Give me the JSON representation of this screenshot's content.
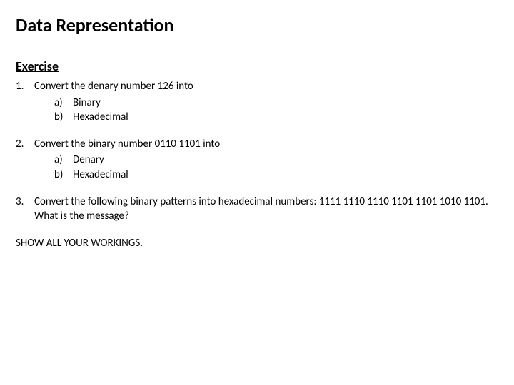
{
  "colors": {
    "background": "#ffffff",
    "text": "#000000"
  },
  "typography": {
    "family": "Calibri",
    "title_size_pt": 20,
    "subtitle_size_pt": 14,
    "body_size_pt": 11
  },
  "title": "Data Representation",
  "subtitle": "Exercise",
  "items": [
    {
      "num": "1.",
      "prompt": "Convert the denary number 126 into",
      "subs": [
        {
          "num": "a)",
          "text": "Binary"
        },
        {
          "num": "b)",
          "text": "Hexadecimal"
        }
      ]
    },
    {
      "num": "2.",
      "prompt": "Convert the binary number 0110 1101 into",
      "subs": [
        {
          "num": "a)",
          "text": "Denary"
        },
        {
          "num": "b)",
          "text": "Hexadecimal"
        }
      ]
    },
    {
      "num": "3.",
      "prompt": "Convert the following binary patterns into hexadecimal numbers: 1111 1110 1110 1101 1101 1010 1101.  What is the message?",
      "subs": []
    }
  ],
  "footer": "SHOW ALL YOUR WORKINGS."
}
